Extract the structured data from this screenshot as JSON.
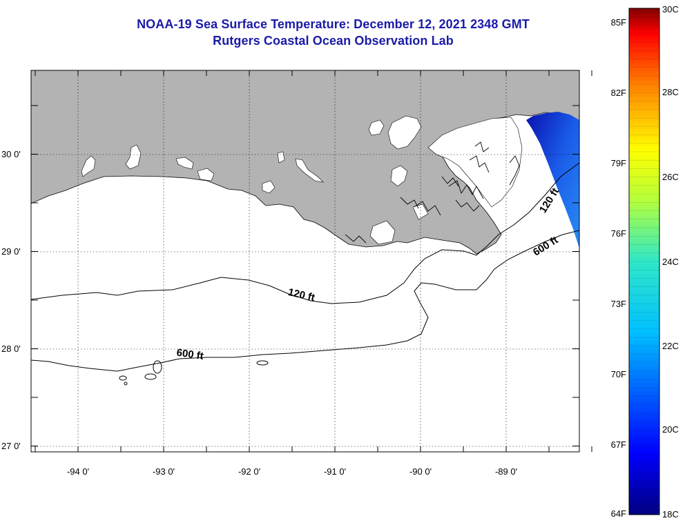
{
  "header": {
    "title": "NOAA-19 Sea Surface Temperature:  December 12, 2021 2348 GMT",
    "subtitle": "Rutgers Coastal Ocean Observation Lab"
  },
  "axes": {
    "lat_labels": [
      "30 0'",
      "29 0'",
      "28 0'",
      "27 0'"
    ],
    "lon_labels": [
      "-94 0'",
      "-93 0'",
      "-92 0'",
      "-91 0'",
      "-90 0'",
      "-89 0'"
    ]
  },
  "contours": {
    "c120_east": "120 ft",
    "c600_east": "600 ft",
    "c120_west": "120 ft",
    "c600_west": "600 ft"
  },
  "colorbar": {
    "fahrenheit": [
      "85F",
      "82F",
      "79F",
      "76F",
      "73F",
      "70F",
      "67F",
      "64F"
    ],
    "celsius": [
      "30C",
      "28C",
      "26C",
      "24C",
      "22C",
      "20C",
      "18C"
    ]
  },
  "colors": {
    "land": "#b3b3b3",
    "title": "#1a1aa8",
    "scale_top": "#800000",
    "scale_bottom": "#000080"
  }
}
